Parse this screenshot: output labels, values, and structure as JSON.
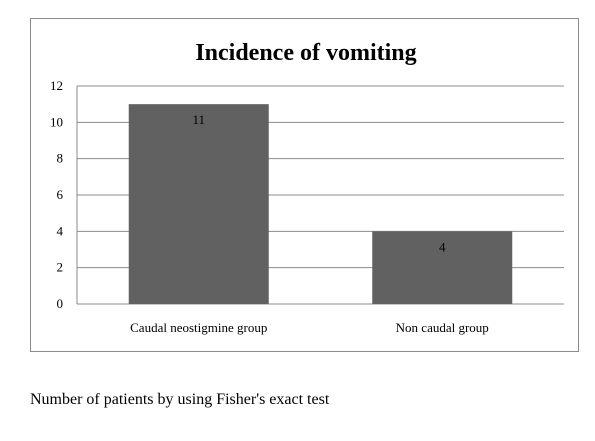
{
  "chart_data": {
    "type": "bar",
    "title": "Incidence of vomiting",
    "xlabel": "",
    "ylabel": "",
    "categories": [
      "Caudal neostigmine group",
      "Non caudal group"
    ],
    "values": [
      11,
      4
    ],
    "data_labels": [
      "11",
      "4"
    ],
    "ylim": [
      0,
      12
    ],
    "yticks": [
      0,
      2,
      4,
      6,
      8,
      10,
      12
    ],
    "grid": true,
    "legend": "none",
    "bar_color": "#616161",
    "grid_color": "#8c8c8c"
  },
  "caption": "Number of patients by using Fisher's exact test"
}
